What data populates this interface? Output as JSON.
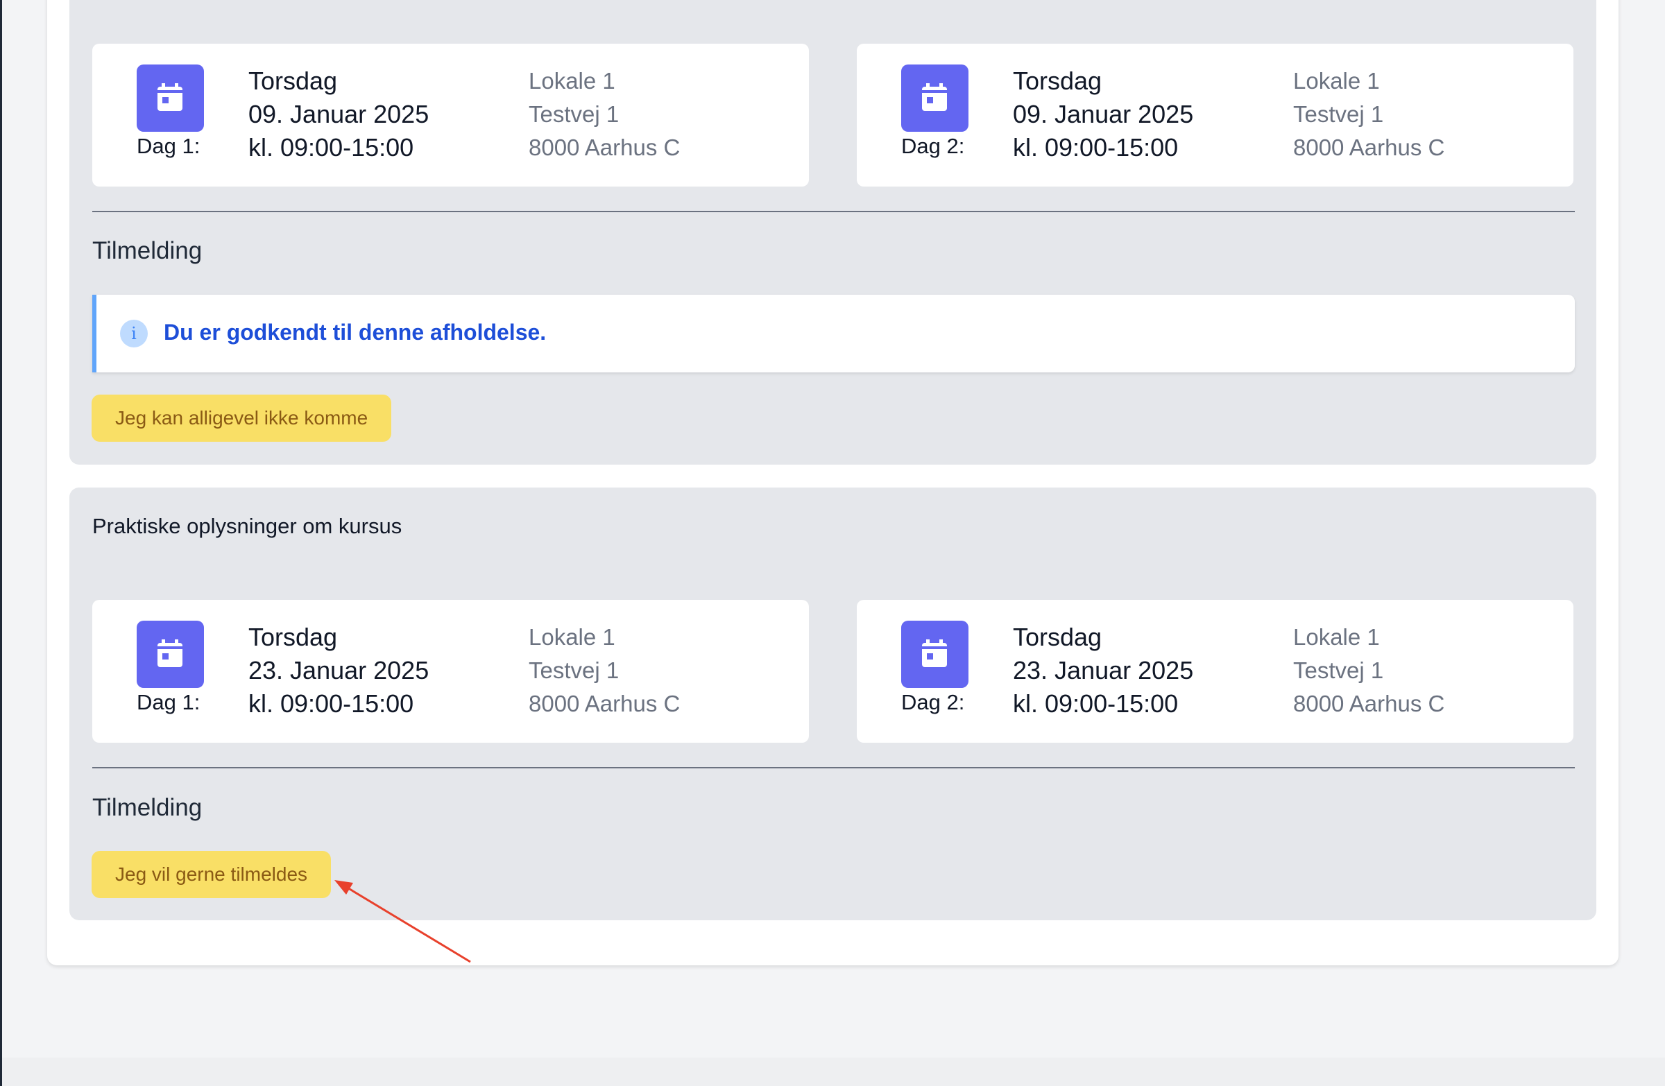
{
  "sessions": [
    {
      "days": [
        {
          "label": "Dag 1:",
          "weekday": "Torsdag",
          "date": "09. Januar 2025",
          "time": "kl. 09:00-15:00",
          "room": "Lokale 1",
          "street": "Testvej 1",
          "city": "8000 Aarhus C"
        },
        {
          "label": "Dag 2:",
          "weekday": "Torsdag",
          "date": "09. Januar 2025",
          "time": "kl. 09:00-15:00",
          "room": "Lokale 1",
          "street": "Testvej 1",
          "city": "8000 Aarhus C"
        }
      ],
      "signup_heading": "Tilmelding",
      "alert_text": "Du er godkendt til denne afholdelse.",
      "button_label": "Jeg kan alligevel ikke komme"
    },
    {
      "title": "Praktiske oplysninger om kursus",
      "days": [
        {
          "label": "Dag 1:",
          "weekday": "Torsdag",
          "date": "23. Januar 2025",
          "time": "kl. 09:00-15:00",
          "room": "Lokale 1",
          "street": "Testvej 1",
          "city": "8000 Aarhus C"
        },
        {
          "label": "Dag 2:",
          "weekday": "Torsdag",
          "date": "23. Januar 2025",
          "time": "kl. 09:00-15:00",
          "room": "Lokale 1",
          "street": "Testvej 1",
          "city": "8000 Aarhus C"
        }
      ],
      "signup_heading": "Tilmelding",
      "button_label": "Jeg vil gerne tilmeldes"
    }
  ],
  "icons": {
    "day": "calendar-icon",
    "alert": "info-icon"
  },
  "colors": {
    "accent": "#6366f1",
    "button_bg": "#f9df66",
    "button_text": "#8a5a14",
    "alert_text": "#1d4ed8",
    "annotation_arrow": "#e8412c"
  }
}
